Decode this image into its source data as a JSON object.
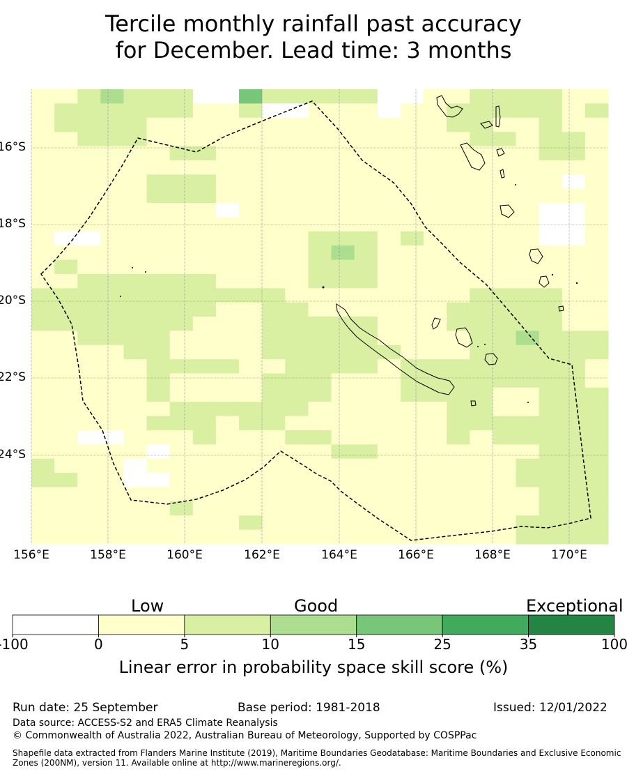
{
  "title": {
    "line1": "Tercile monthly rainfall past accuracy",
    "line2": "for December. Lead time: 3 months"
  },
  "map": {
    "lat_labels": [
      "16°S",
      "18°S",
      "20°S",
      "22°S",
      "24°S"
    ],
    "lon_labels": [
      "156°E",
      "158°E",
      "160°E",
      "162°E",
      "164°E",
      "166°E",
      "168°E",
      "170°E"
    ],
    "grid_colors": [
      "#ffffff",
      "#ffffcc",
      "#d9f0a3",
      "#addd8e",
      "#78c679",
      "#41ab5d",
      "#238443"
    ],
    "grid_rows": [
      "1123222004222220011222211",
      "1222222112001110112222212",
      "1222211111111111112211211",
      "1122211111111111111221221",
      "1111112211111111111111221",
      "1111111111111111111111111",
      "1111122211111111111111101",
      "1111122211111111111111111",
      "1111111101111111111111001",
      "1111111111111111111111001",
      "1001111111112221211111001",
      "1111111111112321111111111",
      "1211111111112221111111111",
      "1122222211112221111111111",
      "2222222222211111111222211",
      "2222222211221111112222211",
      "2222222111222221112222211",
      "1122221111222221111223222",
      "1111221111222222111222222",
      "1111122221122221222222221",
      "1111121111222111222222221",
      "1111121111222111222211222",
      "1111112222221111112211222",
      "1111122212211111112222222",
      "1100111211122111112122222",
      "1111101111111221111111222",
      "2111011111111111111112222",
      "2211001111111111111112222",
      "1111111111111111111111222",
      "1111112111111111111111222",
      "1111111112111111111112222",
      "1111111111111111111112222"
    ]
  },
  "colorbar": {
    "headings": [
      "Low",
      "Good",
      "Exceptional"
    ],
    "ticks": [
      "-100",
      "0",
      "5",
      "10",
      "15",
      "25",
      "35",
      "100"
    ],
    "label": "Linear error in probability space skill score (%)"
  },
  "footer": {
    "run_date": "Run date: 25 September",
    "base_period": "Base period: 1981-2018",
    "issued": "Issued: 12/01/2022",
    "data_source": "Data source: ACCESS-S2 and ERA5 Climate Reanalysis",
    "copyright": "© Commonwealth of Australia 2022, Australian Bureau of Meteorology, Supported by COSPPac",
    "shapefile": "Shapefile data extracted from Flanders Marine Institute (2019), Maritime Boundaries Geodatabase: Maritime Boundaries and Exclusive Economic Zones (200NM), version 11. Available online at http://www.marineregions.org/."
  }
}
